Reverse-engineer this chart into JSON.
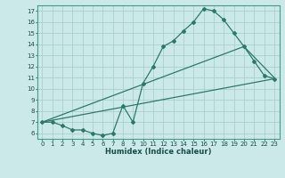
{
  "xlabel": "Humidex (Indice chaleur)",
  "background_color": "#cce9e9",
  "grid_color": "#aacece",
  "line_color": "#2a7a6a",
  "xlim": [
    -0.5,
    23.5
  ],
  "ylim": [
    5.5,
    17.5
  ],
  "xticks": [
    0,
    1,
    2,
    3,
    4,
    5,
    6,
    7,
    8,
    9,
    10,
    11,
    12,
    13,
    14,
    15,
    16,
    17,
    18,
    19,
    20,
    21,
    22,
    23
  ],
  "yticks": [
    6,
    7,
    8,
    9,
    10,
    11,
    12,
    13,
    14,
    15,
    16,
    17
  ],
  "line1_x": [
    0,
    1,
    2,
    3,
    4,
    5,
    6,
    7,
    8,
    9,
    10,
    11,
    12,
    13,
    14,
    15,
    16,
    17,
    18,
    19,
    20,
    21,
    22,
    23
  ],
  "line1_y": [
    7.0,
    7.0,
    6.7,
    6.3,
    6.3,
    6.0,
    5.8,
    6.0,
    8.5,
    7.0,
    10.5,
    12.0,
    13.8,
    14.3,
    15.2,
    16.0,
    17.2,
    17.0,
    16.2,
    15.0,
    13.8,
    12.5,
    11.2,
    10.9
  ],
  "line2_x": [
    0,
    23
  ],
  "line2_y": [
    7.0,
    10.9
  ],
  "line3_x": [
    0,
    20,
    23
  ],
  "line3_y": [
    7.0,
    13.8,
    11.0
  ],
  "xlabel_fontsize": 6,
  "tick_fontsize": 5
}
